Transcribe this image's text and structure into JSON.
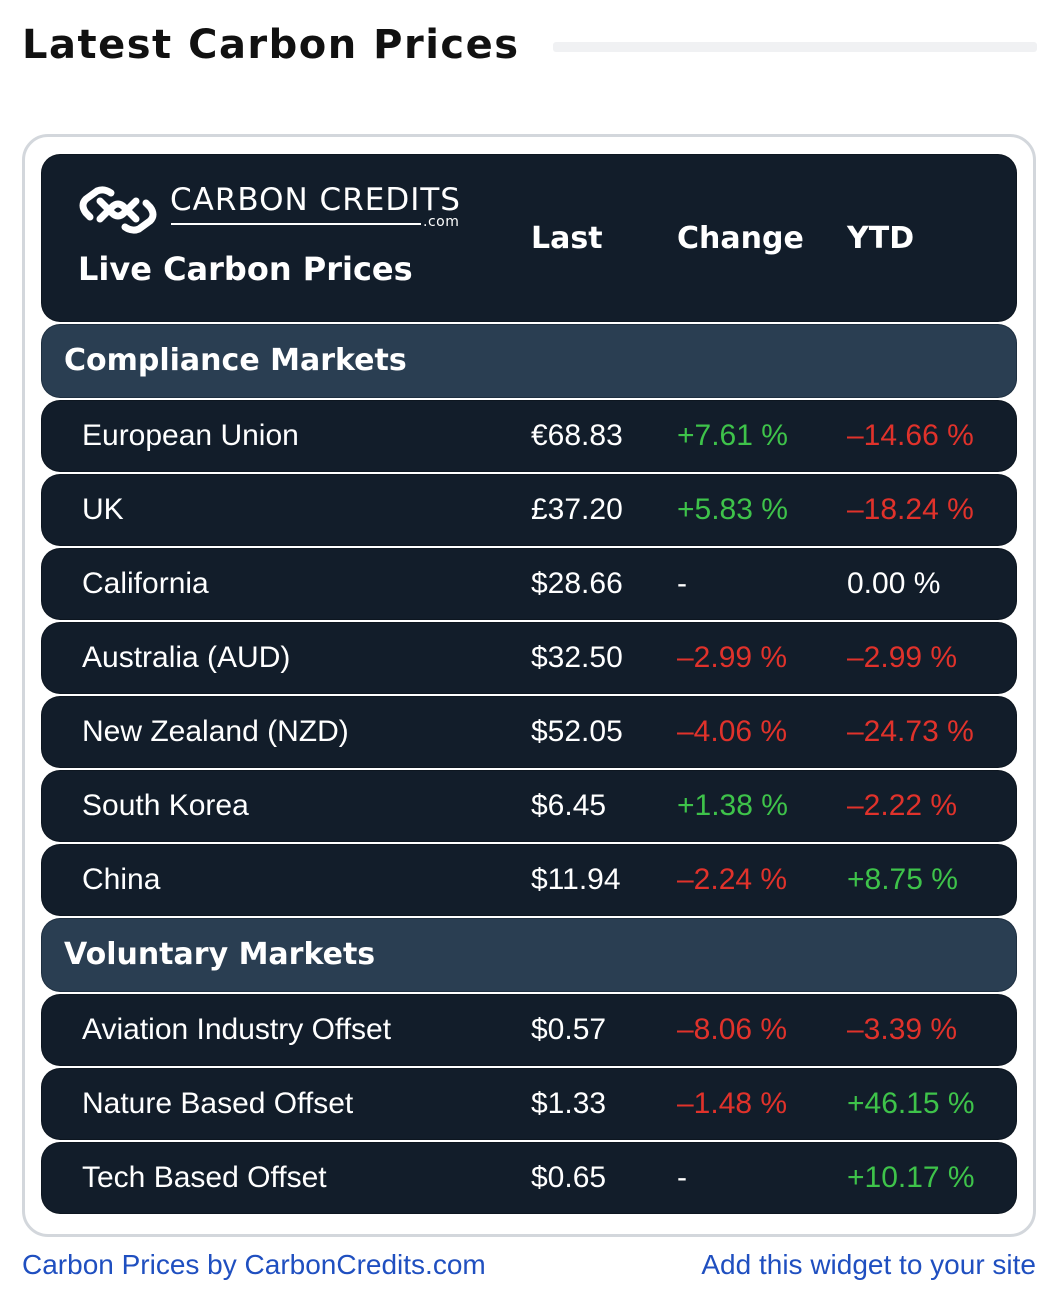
{
  "page": {
    "title": "Latest Carbon Prices"
  },
  "widget": {
    "logo_name": "CARBON CREDITS",
    "logo_domain": ".com",
    "subtitle": "Live Carbon Prices",
    "columns": {
      "last": "Last",
      "change": "Change",
      "ytd": "YTD"
    }
  },
  "sections": [
    {
      "label": "Compliance Markets",
      "rows": [
        {
          "name": "European Union",
          "last": "€68.83",
          "change": "+7.61 %",
          "change_tone": "pos",
          "ytd": "–14.66 %",
          "ytd_tone": "neg"
        },
        {
          "name": "UK",
          "last": "£37.20",
          "change": "+5.83 %",
          "change_tone": "pos",
          "ytd": "–18.24 %",
          "ytd_tone": "neg"
        },
        {
          "name": "California",
          "last": "$28.66",
          "change": "-",
          "change_tone": "neutral",
          "ytd": "0.00 %",
          "ytd_tone": "neutral"
        },
        {
          "name": "Australia (AUD)",
          "last": "$32.50",
          "change": "–2.99 %",
          "change_tone": "neg",
          "ytd": "–2.99 %",
          "ytd_tone": "neg"
        },
        {
          "name": "New Zealand (NZD)",
          "last": "$52.05",
          "change": "–4.06 %",
          "change_tone": "neg",
          "ytd": "–24.73 %",
          "ytd_tone": "neg"
        },
        {
          "name": "South Korea",
          "last": "$6.45",
          "change": "+1.38 %",
          "change_tone": "pos",
          "ytd": "–2.22 %",
          "ytd_tone": "neg"
        },
        {
          "name": "China",
          "last": "$11.94",
          "change": "–2.24 %",
          "change_tone": "neg",
          "ytd": "+8.75 %",
          "ytd_tone": "pos"
        }
      ]
    },
    {
      "label": "Voluntary Markets",
      "rows": [
        {
          "name": "Aviation Industry Offset",
          "last": "$0.57",
          "change": "–8.06 %",
          "change_tone": "neg",
          "ytd": "–3.39 %",
          "ytd_tone": "neg"
        },
        {
          "name": "Nature Based Offset",
          "last": "$1.33",
          "change": "–1.48 %",
          "change_tone": "neg",
          "ytd": "+46.15 %",
          "ytd_tone": "pos"
        },
        {
          "name": "Tech Based Offset",
          "last": "$0.65",
          "change": "-",
          "change_tone": "neutral",
          "ytd": "+10.17 %",
          "ytd_tone": "pos"
        }
      ]
    }
  ],
  "footer": {
    "attribution_link": "Carbon Prices by CarbonCredits.com",
    "widget_link": "Add this widget to your site"
  },
  "colors": {
    "card_dark": "#121d2a",
    "section_bg": "#2a3e52",
    "positive": "#3ec34a",
    "negative": "#e0322b",
    "link": "#1f4fc0"
  },
  "icons": {
    "logo": "carbon-credits-logo-icon"
  }
}
